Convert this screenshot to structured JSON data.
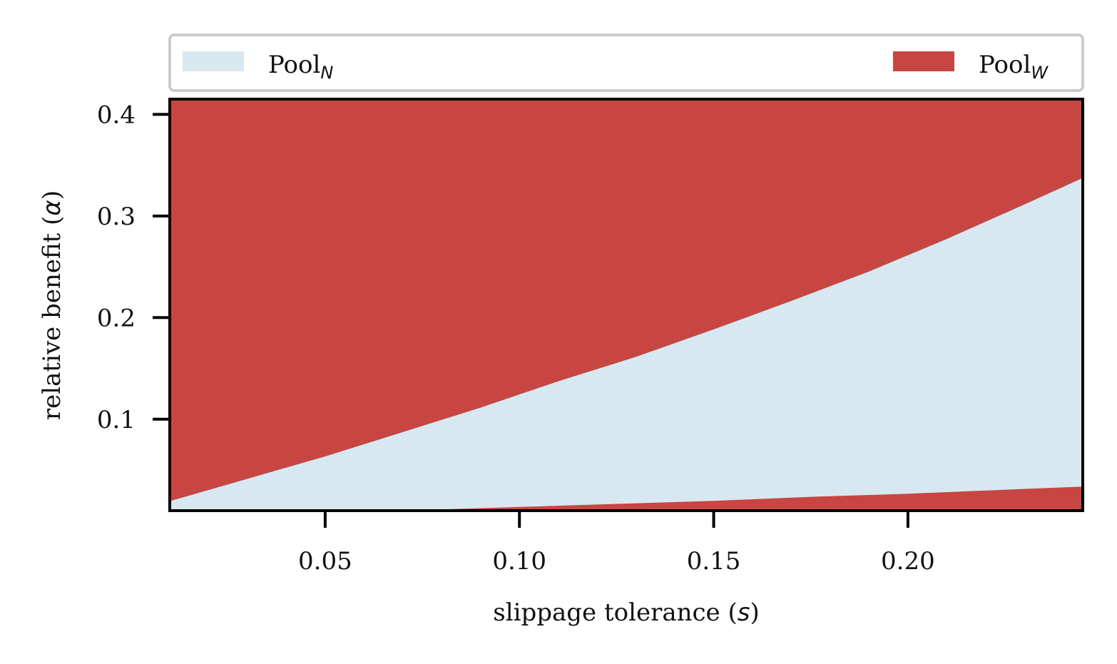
{
  "chart_data": {
    "type": "area",
    "xlabel": "slippage tolerance",
    "xlabel_symbol": "s",
    "ylabel": "relative benefit",
    "ylabel_symbol": "α",
    "xlim": [
      0.01,
      0.245
    ],
    "ylim": [
      0.01,
      0.415
    ],
    "x_ticks": [
      {
        "value": 0.05,
        "label": "0.05"
      },
      {
        "value": 0.1,
        "label": "0.10"
      },
      {
        "value": 0.15,
        "label": "0.15"
      },
      {
        "value": 0.2,
        "label": "0.20"
      }
    ],
    "y_ticks": [
      {
        "value": 0.1,
        "label": "0.1"
      },
      {
        "value": 0.2,
        "label": "0.2"
      },
      {
        "value": 0.3,
        "label": "0.3"
      },
      {
        "value": 0.4,
        "label": "0.4"
      }
    ],
    "legend_placement": "top, above plot",
    "legend": [
      {
        "base": "Pool",
        "sub": "N",
        "color": "#d8e8f1"
      },
      {
        "base": "Pool",
        "sub": "W",
        "color": "#c84642"
      }
    ],
    "series": [
      {
        "name": "upper boundary",
        "x": [
          0.01,
          0.03,
          0.05,
          0.07,
          0.09,
          0.1,
          0.11,
          0.13,
          0.15,
          0.17,
          0.19,
          0.2,
          0.21,
          0.23,
          0.245
        ],
        "y": [
          0.019,
          0.041,
          0.063,
          0.087,
          0.111,
          0.124,
          0.137,
          0.161,
          0.188,
          0.216,
          0.245,
          0.261,
          0.277,
          0.311,
          0.337
        ]
      },
      {
        "name": "lower boundary",
        "x": [
          0.01,
          0.05,
          0.075,
          0.1,
          0.125,
          0.15,
          0.175,
          0.2,
          0.225,
          0.245
        ],
        "y": [
          0.01,
          0.01,
          0.011,
          0.014,
          0.017,
          0.02,
          0.024,
          0.027,
          0.031,
          0.034
        ]
      }
    ],
    "regions": [
      {
        "label": "Pool_W",
        "where": "above upper boundary",
        "color": "#c84642"
      },
      {
        "label": "Pool_N",
        "where": "between boundaries",
        "color": "#d8e8f1"
      },
      {
        "label": "Pool_W",
        "where": "below lower boundary",
        "color": "#c84642"
      }
    ]
  }
}
